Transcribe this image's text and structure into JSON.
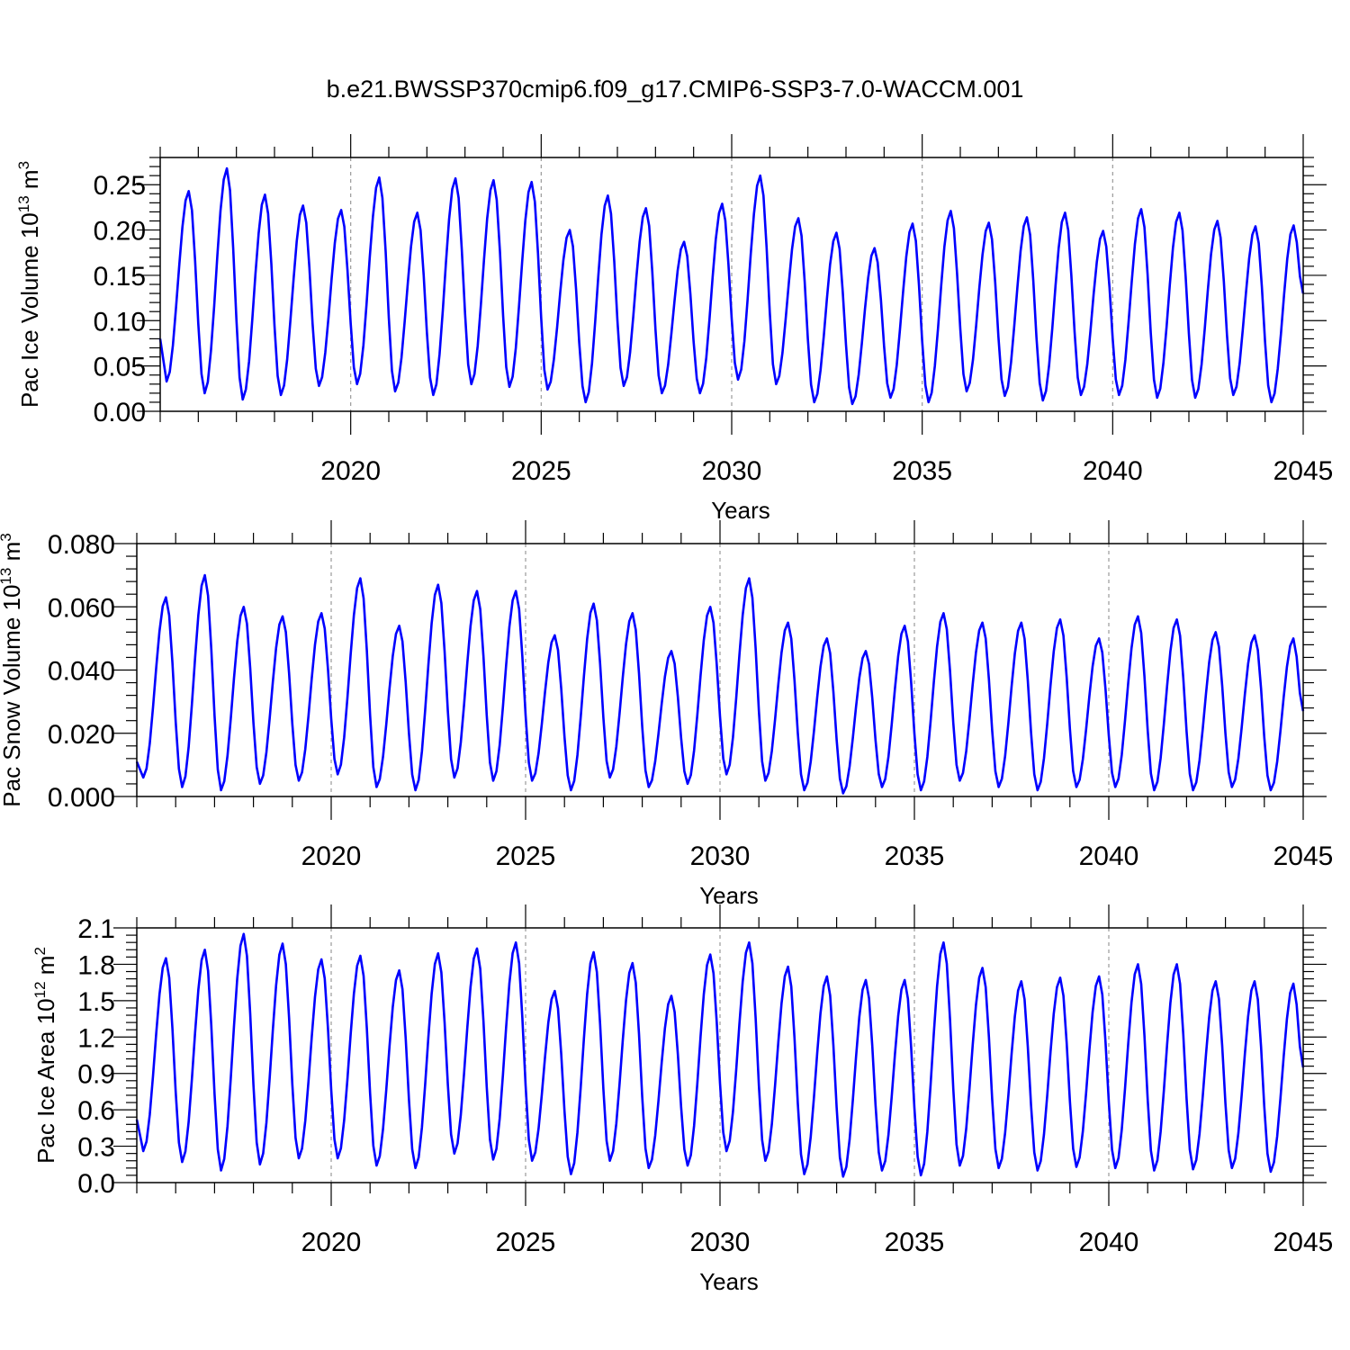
{
  "figure": {
    "title": "b.e21.BWSSP370cmip6.f09_g17.CMIP6-SSP3-7.0-WACCM.001",
    "series_color": "#0000ff"
  },
  "chart_data": [
    {
      "type": "line",
      "title": "b.e21.BWSSP370cmip6.f09_g17.CMIP6-SSP3-7.0-WACCM.001",
      "xlabel": "Years",
      "ylabel": "Pac Ice Volume",
      "ylabel_unit_base": "10",
      "ylabel_unit_exp": "13",
      "ylabel_unit_suffix": "m",
      "ylabel_unit_suffix_exp": "3",
      "xlim": [
        2015,
        2045
      ],
      "ylim": [
        0.0,
        0.28
      ],
      "xticks": [
        2020,
        2025,
        2030,
        2035,
        2040,
        2045
      ],
      "yticks": [
        0.0,
        0.05,
        0.1,
        0.15,
        0.2,
        0.25
      ],
      "ytick_labels": [
        "0.00",
        "0.05",
        "0.10",
        "0.15",
        "0.20",
        "0.25"
      ],
      "grid": "dashed vertical at major x ticks",
      "series": [
        {
          "color": "#0000ff",
          "x_start": 2015.0,
          "x_step": 0.08333,
          "maxima": [
            0.243,
            0.268,
            0.239,
            0.227,
            0.222,
            0.258,
            0.219,
            0.257,
            0.255,
            0.253,
            0.2,
            0.238,
            0.224,
            0.187,
            0.229,
            0.26,
            0.213,
            0.197,
            0.18,
            0.207,
            0.221,
            0.208,
            0.214,
            0.219,
            0.199,
            0.223,
            0.219,
            0.21,
            0.204,
            0.205
          ],
          "minima": [
            0.033,
            0.02,
            0.013,
            0.018,
            0.028,
            0.03,
            0.022,
            0.018,
            0.03,
            0.027,
            0.024,
            0.01,
            0.028,
            0.02,
            0.02,
            0.035,
            0.03,
            0.01,
            0.008,
            0.015,
            0.01,
            0.022,
            0.017,
            0.012,
            0.018,
            0.018,
            0.015,
            0.015,
            0.018,
            0.01
          ],
          "start_value": 0.08,
          "end_value": 0.13
        }
      ]
    },
    {
      "type": "line",
      "xlabel": "Years",
      "ylabel": "Pac Snow Volume",
      "ylabel_unit_base": "10",
      "ylabel_unit_exp": "13",
      "ylabel_unit_suffix": "m",
      "ylabel_unit_suffix_exp": "3",
      "xlim": [
        2015,
        2045
      ],
      "ylim": [
        0.0,
        0.08
      ],
      "xticks": [
        2020,
        2025,
        2030,
        2035,
        2040,
        2045
      ],
      "yticks": [
        0.0,
        0.02,
        0.04,
        0.06,
        0.08
      ],
      "ytick_labels": [
        "0.000",
        "0.020",
        "0.040",
        "0.060",
        "0.080"
      ],
      "grid": "dashed vertical at major x ticks",
      "series": [
        {
          "color": "#0000ff",
          "x_start": 2015.0,
          "x_step": 0.08333,
          "maxima": [
            0.063,
            0.07,
            0.06,
            0.057,
            0.058,
            0.069,
            0.054,
            0.067,
            0.065,
            0.065,
            0.051,
            0.061,
            0.058,
            0.046,
            0.06,
            0.069,
            0.055,
            0.05,
            0.046,
            0.054,
            0.058,
            0.055,
            0.055,
            0.056,
            0.05,
            0.057,
            0.056,
            0.052,
            0.051,
            0.05
          ],
          "minima": [
            0.006,
            0.003,
            0.002,
            0.004,
            0.005,
            0.007,
            0.003,
            0.002,
            0.006,
            0.005,
            0.005,
            0.002,
            0.006,
            0.003,
            0.004,
            0.007,
            0.005,
            0.002,
            0.001,
            0.003,
            0.002,
            0.005,
            0.003,
            0.002,
            0.003,
            0.003,
            0.002,
            0.002,
            0.003,
            0.002
          ],
          "start_value": 0.011,
          "end_value": 0.027
        }
      ]
    },
    {
      "type": "line",
      "xlabel": "Years",
      "ylabel": "Pac Ice Area",
      "ylabel_unit_base": "10",
      "ylabel_unit_exp": "12",
      "ylabel_unit_suffix": "m",
      "ylabel_unit_suffix_exp": "2",
      "xlim": [
        2015,
        2045
      ],
      "ylim": [
        0.0,
        2.1
      ],
      "xticks": [
        2020,
        2025,
        2030,
        2035,
        2040,
        2045
      ],
      "yticks": [
        0.0,
        0.3,
        0.6,
        0.9,
        1.2,
        1.5,
        1.8,
        2.1
      ],
      "ytick_labels": [
        "0.0",
        "0.3",
        "0.6",
        "0.9",
        "1.2",
        "1.5",
        "1.8",
        "2.1"
      ],
      "grid": "dashed vertical at major x ticks",
      "series": [
        {
          "color": "#0000ff",
          "x_start": 2015.0,
          "x_step": 0.08333,
          "maxima": [
            1.85,
            1.92,
            2.05,
            1.97,
            1.84,
            1.87,
            1.75,
            1.89,
            1.93,
            1.98,
            1.58,
            1.9,
            1.81,
            1.54,
            1.88,
            1.98,
            1.78,
            1.7,
            1.67,
            1.67,
            1.98,
            1.77,
            1.66,
            1.69,
            1.7,
            1.8,
            1.8,
            1.66,
            1.66,
            1.64
          ],
          "minima": [
            0.26,
            0.17,
            0.1,
            0.15,
            0.2,
            0.2,
            0.14,
            0.12,
            0.24,
            0.19,
            0.18,
            0.07,
            0.18,
            0.12,
            0.14,
            0.26,
            0.18,
            0.07,
            0.05,
            0.1,
            0.06,
            0.14,
            0.12,
            0.1,
            0.13,
            0.12,
            0.1,
            0.11,
            0.12,
            0.09
          ],
          "start_value": 0.52,
          "end_value": 0.95
        }
      ]
    }
  ]
}
